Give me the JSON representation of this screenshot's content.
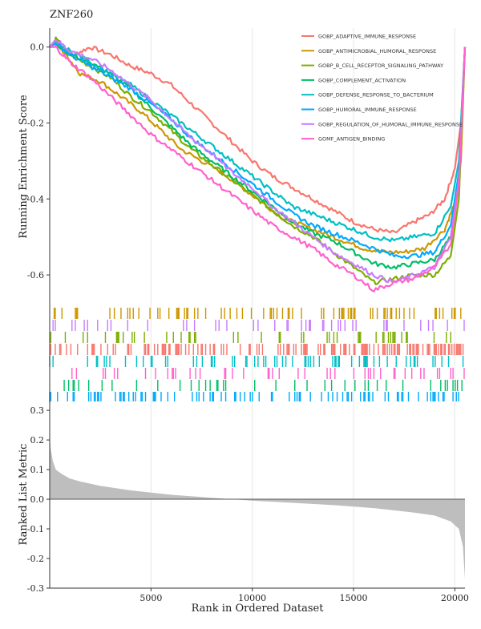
{
  "chart_data": [
    {
      "type": "line",
      "title": "ZNF260",
      "ylabel": "Running Enrichment Score",
      "xlim": [
        0,
        20500
      ],
      "ylim": [
        -0.68,
        0.05
      ],
      "yticks": [
        0.0,
        -0.2,
        -0.4,
        -0.6
      ],
      "ytick_labels": [
        "0.0",
        "-0.2",
        "-0.4",
        "-0.6"
      ],
      "grid": "vertical",
      "legend_position": "top-right",
      "series": [
        {
          "name": "GOBP_ADAPTIVE_IMMUNE_RESPONSE",
          "color": "#F8766D",
          "x": [
            0,
            300,
            1200,
            2000,
            3000,
            4000,
            5000,
            6000,
            7000,
            8000,
            9000,
            10000,
            11000,
            12000,
            13000,
            14000,
            15000,
            16000,
            17000,
            18000,
            18800,
            19500,
            20000,
            20300,
            20500
          ],
          "y": [
            0.0,
            0.01,
            -0.02,
            0.0,
            -0.02,
            -0.05,
            -0.07,
            -0.1,
            -0.15,
            -0.2,
            -0.25,
            -0.3,
            -0.34,
            -0.37,
            -0.4,
            -0.43,
            -0.46,
            -0.48,
            -0.49,
            -0.46,
            -0.44,
            -0.4,
            -0.32,
            -0.2,
            0.0
          ]
        },
        {
          "name": "GOBP_ANTIMICROBIAL_HUMORAL_RESPONSE",
          "color": "#CD9600",
          "x": [
            0,
            300,
            800,
            1500,
            2500,
            3500,
            4500,
            5500,
            6500,
            7500,
            8500,
            9500,
            10500,
            11500,
            12500,
            13500,
            14500,
            15500,
            16500,
            17500,
            18500,
            19500,
            20000,
            20300,
            20500
          ],
          "y": [
            0.0,
            0.01,
            -0.02,
            -0.07,
            -0.09,
            -0.13,
            -0.17,
            -0.22,
            -0.27,
            -0.3,
            -0.33,
            -0.37,
            -0.41,
            -0.45,
            -0.47,
            -0.49,
            -0.51,
            -0.53,
            -0.54,
            -0.54,
            -0.53,
            -0.48,
            -0.41,
            -0.3,
            0.0
          ]
        },
        {
          "name": "GOBP_B_CELL_RECEPTOR_SIGNALING_PATHWAY",
          "color": "#7CAE00",
          "x": [
            0,
            300,
            1000,
            2000,
            3000,
            4000,
            5000,
            6000,
            7000,
            8000,
            9000,
            10000,
            11000,
            12000,
            13000,
            14000,
            15000,
            16000,
            17000,
            18000,
            19000,
            19800,
            20200,
            20500
          ],
          "y": [
            0.0,
            0.02,
            -0.02,
            -0.05,
            -0.08,
            -0.13,
            -0.17,
            -0.22,
            -0.27,
            -0.31,
            -0.35,
            -0.39,
            -0.43,
            -0.47,
            -0.5,
            -0.54,
            -0.58,
            -0.62,
            -0.61,
            -0.6,
            -0.6,
            -0.55,
            -0.4,
            0.0
          ]
        },
        {
          "name": "GOBP_COMPLEMENT_ACTIVATION",
          "color": "#00BE67",
          "x": [
            0,
            300,
            1000,
            2000,
            3000,
            4000,
            5000,
            6000,
            7000,
            8000,
            9000,
            10000,
            11000,
            12000,
            13000,
            14000,
            15000,
            16000,
            17000,
            18000,
            19000,
            19800,
            20200,
            20500
          ],
          "y": [
            0.0,
            0.01,
            -0.02,
            -0.04,
            -0.07,
            -0.11,
            -0.16,
            -0.21,
            -0.26,
            -0.3,
            -0.34,
            -0.38,
            -0.42,
            -0.46,
            -0.49,
            -0.51,
            -0.54,
            -0.57,
            -0.58,
            -0.57,
            -0.56,
            -0.5,
            -0.35,
            0.0
          ]
        },
        {
          "name": "GOBP_DEFENSE_RESPONSE_TO_BACTERIUM",
          "color": "#00BFC4",
          "x": [
            0,
            300,
            1000,
            2000,
            3000,
            4000,
            5000,
            6000,
            7000,
            8000,
            9000,
            10000,
            11000,
            12000,
            13000,
            14000,
            15000,
            16000,
            17000,
            18000,
            19000,
            19800,
            20200,
            20500
          ],
          "y": [
            0.0,
            0.01,
            -0.01,
            -0.04,
            -0.07,
            -0.1,
            -0.14,
            -0.18,
            -0.22,
            -0.26,
            -0.3,
            -0.34,
            -0.38,
            -0.42,
            -0.44,
            -0.46,
            -0.48,
            -0.5,
            -0.51,
            -0.5,
            -0.49,
            -0.42,
            -0.3,
            0.0
          ]
        },
        {
          "name": "GOBP_HUMORAL_IMMUNE_RESPONSE",
          "color": "#00A9FF",
          "x": [
            0,
            300,
            1000,
            2000,
            3000,
            4000,
            5000,
            6000,
            7000,
            8000,
            9000,
            10000,
            11000,
            12000,
            13000,
            14000,
            15000,
            16000,
            17000,
            18000,
            19000,
            19800,
            20200,
            20500
          ],
          "y": [
            0.0,
            0.01,
            -0.02,
            -0.05,
            -0.08,
            -0.11,
            -0.15,
            -0.19,
            -0.24,
            -0.28,
            -0.32,
            -0.36,
            -0.4,
            -0.44,
            -0.47,
            -0.49,
            -0.51,
            -0.53,
            -0.55,
            -0.55,
            -0.54,
            -0.47,
            -0.33,
            0.0
          ]
        },
        {
          "name": "GOBP_REGULATION_OF_HUMORAL_IMMUNE_RESPONSE",
          "color": "#C77CFF",
          "x": [
            0,
            300,
            1000,
            2000,
            3000,
            4000,
            5000,
            6000,
            7000,
            8000,
            9000,
            10000,
            11000,
            12000,
            13000,
            14000,
            15000,
            16000,
            17000,
            18000,
            19000,
            19800,
            20200,
            20500
          ],
          "y": [
            0.0,
            0.02,
            -0.01,
            -0.03,
            -0.06,
            -0.1,
            -0.14,
            -0.19,
            -0.24,
            -0.28,
            -0.33,
            -0.37,
            -0.42,
            -0.46,
            -0.5,
            -0.54,
            -0.57,
            -0.6,
            -0.62,
            -0.6,
            -0.58,
            -0.5,
            -0.35,
            0.0
          ]
        },
        {
          "name": "GOMF_ANTIGEN_BINDING",
          "color": "#FF61CC",
          "x": [
            0,
            300,
            1000,
            2000,
            3000,
            4000,
            5000,
            6000,
            7000,
            8000,
            9000,
            10000,
            11000,
            12000,
            13000,
            14000,
            15000,
            16000,
            17000,
            18000,
            19000,
            19800,
            20200,
            20500
          ],
          "y": [
            0.0,
            0.0,
            -0.04,
            -0.08,
            -0.13,
            -0.18,
            -0.23,
            -0.27,
            -0.31,
            -0.35,
            -0.39,
            -0.43,
            -0.47,
            -0.5,
            -0.53,
            -0.57,
            -0.6,
            -0.64,
            -0.62,
            -0.61,
            -0.58,
            -0.52,
            -0.36,
            0.0
          ]
        }
      ]
    },
    {
      "type": "rug",
      "description_rows": 8,
      "rows": [
        {
          "series": "GOBP_ANTIMICROBIAL_HUMORAL_RESPONSE",
          "color": "#CD9600",
          "density": 0.5
        },
        {
          "series": "GOBP_REGULATION_OF_HUMORAL_IMMUNE_RESPONSE",
          "color": "#C77CFF",
          "density": 0.35
        },
        {
          "series": "GOBP_B_CELL_RECEPTOR_SIGNALING_PATHWAY",
          "color": "#7CAE00",
          "density": 0.3
        },
        {
          "series": "GOBP_ADAPTIVE_IMMUNE_RESPONSE",
          "color": "#F8766D",
          "density": 0.95
        },
        {
          "series": "GOBP_DEFENSE_RESPONSE_TO_BACTERIUM",
          "color": "#00BFC4",
          "density": 0.55
        },
        {
          "series": "GOMF_ANTIGEN_BINDING",
          "color": "#FF61CC",
          "density": 0.3
        },
        {
          "series": "GOBP_COMPLEMENT_ACTIVATION",
          "color": "#00BE67",
          "density": 0.3
        },
        {
          "series": "GOBP_HUMORAL_IMMUNE_RESPONSE",
          "color": "#00A9FF",
          "density": 0.6
        }
      ]
    },
    {
      "type": "area",
      "xlabel": "Rank in Ordered Dataset",
      "ylabel": "Ranked List Metric",
      "xlim": [
        0,
        20500
      ],
      "ylim": [
        -0.3,
        0.33
      ],
      "xticks": [
        5000,
        10000,
        15000,
        20000
      ],
      "xtick_labels": [
        "5000",
        "10000",
        "15000",
        "20000"
      ],
      "yticks": [
        0.3,
        0.2,
        0.1,
        0.0,
        -0.1,
        -0.2,
        -0.3
      ],
      "ytick_labels": [
        "0.3",
        "0.2",
        "0.1",
        "0.0",
        "-0.1",
        "-0.2",
        "-0.3"
      ],
      "color": "#BEBEBE",
      "x": [
        0,
        50,
        150,
        300,
        600,
        1000,
        1500,
        2500,
        4000,
        6000,
        8000,
        9000,
        10000,
        12000,
        14000,
        16000,
        18000,
        19000,
        19800,
        20200,
        20400,
        20500
      ],
      "y": [
        0.21,
        0.17,
        0.13,
        0.1,
        0.085,
        0.07,
        0.06,
        0.045,
        0.03,
        0.015,
        0.005,
        0.0,
        -0.005,
        -0.012,
        -0.02,
        -0.03,
        -0.045,
        -0.055,
        -0.075,
        -0.1,
        -0.16,
        -0.27
      ]
    }
  ]
}
